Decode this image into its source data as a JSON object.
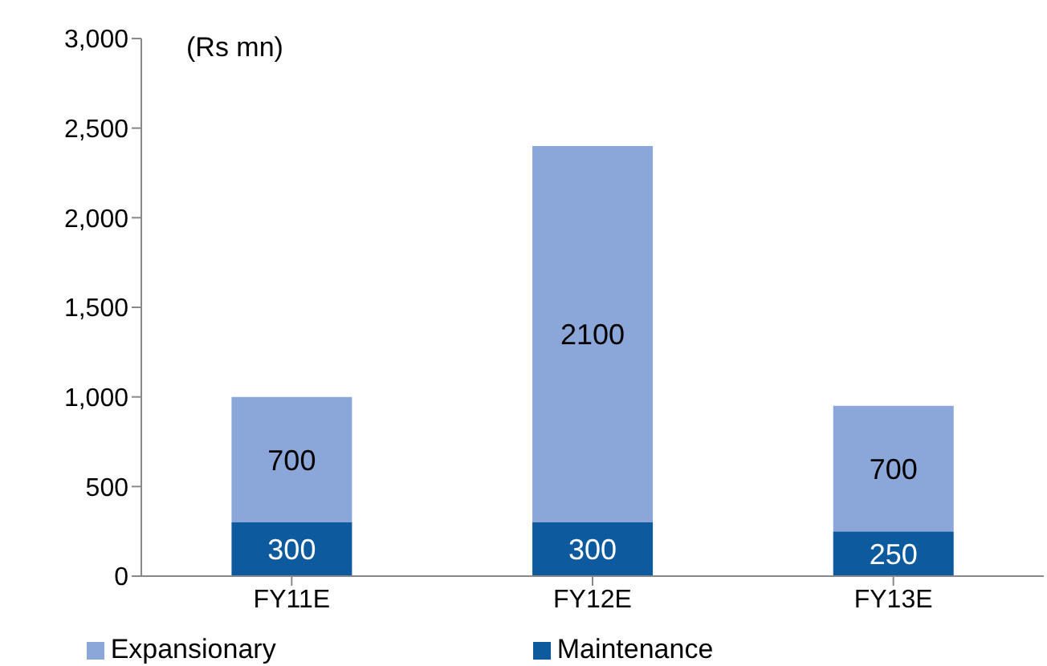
{
  "chart_data": {
    "type": "bar",
    "stacked": true,
    "categories": [
      "FY11E",
      "FY12E",
      "FY13E"
    ],
    "series": [
      {
        "name": "Maintenance",
        "color": "#0e5a9e",
        "values": [
          300,
          300,
          250
        ]
      },
      {
        "name": "Expansionary",
        "color": "#8ba6d8",
        "values": [
          700,
          2100,
          700
        ]
      }
    ],
    "ylim": [
      0,
      3000
    ],
    "yticks": [
      {
        "value": 0,
        "label": "0"
      },
      {
        "value": 500,
        "label": "500"
      },
      {
        "value": 1000,
        "label": "1,000"
      },
      {
        "value": 1500,
        "label": "1,500"
      },
      {
        "value": 2000,
        "label": "2,000"
      },
      {
        "value": 2500,
        "label": "2,500"
      },
      {
        "value": 3000,
        "label": "3,000"
      }
    ],
    "annotations": [
      "(Rs mn)"
    ],
    "data_labels": true,
    "legend": "bottom",
    "grid": false
  }
}
